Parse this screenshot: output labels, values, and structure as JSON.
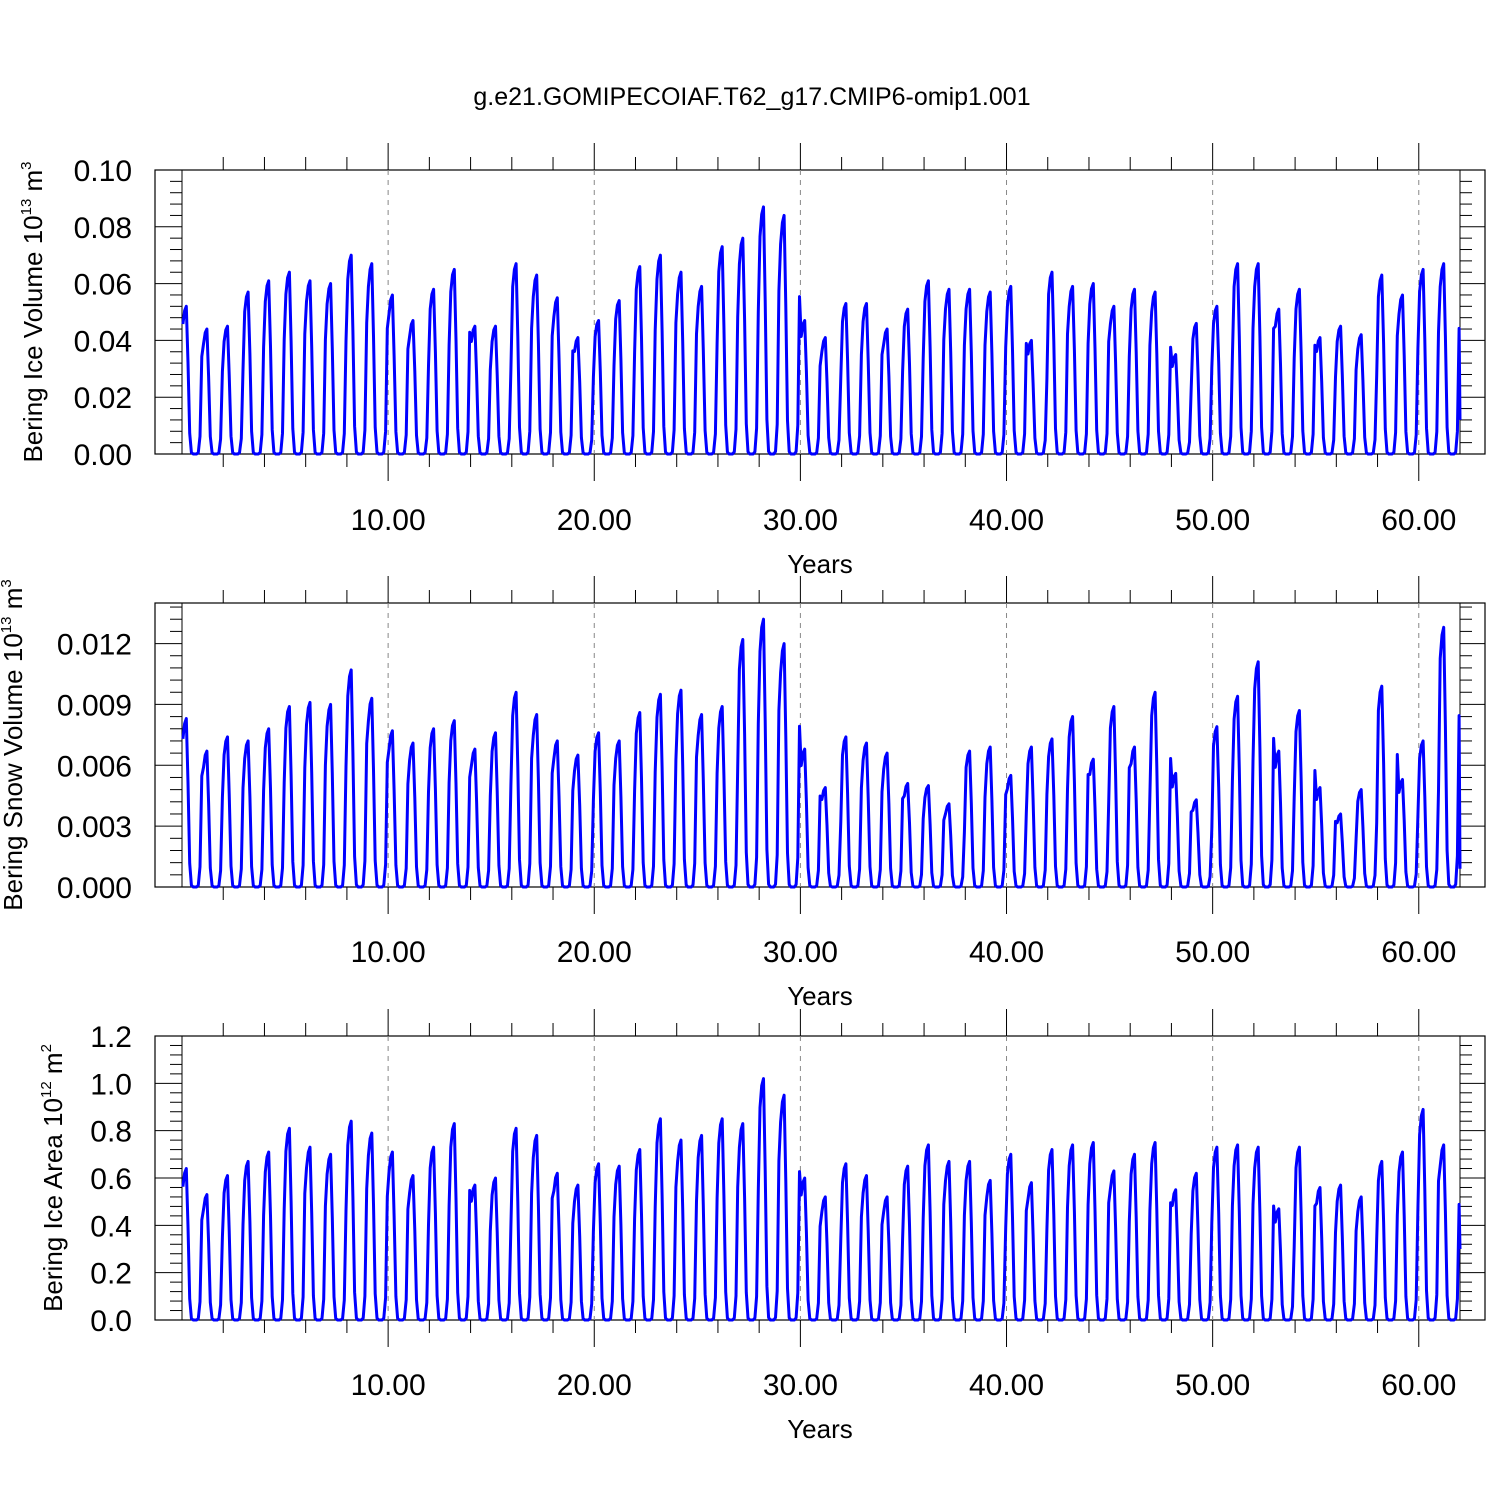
{
  "title": "g.e21.GOMIPECOIAF.T62_g17.CMIP6-omip1.001",
  "colors": {
    "series": "#0000ff",
    "axis": "#000000",
    "grid": "#888888"
  },
  "chart_data": [
    {
      "type": "line",
      "xlabel": "Years",
      "ylabel": {
        "main": "Bering Ice Volume 10",
        "exp": "13",
        "unit": " m",
        "unit_exp": "3"
      },
      "xlim": [
        0,
        62
      ],
      "ylim": [
        0,
        0.1
      ],
      "xticks": [
        10,
        20,
        30,
        40,
        50,
        60
      ],
      "xtick_labels": [
        "10.00",
        "20.00",
        "30.00",
        "40.00",
        "50.00",
        "60.00"
      ],
      "yticks": [
        0,
        0.02,
        0.04,
        0.06,
        0.08,
        0.1
      ],
      "ytick_labels": [
        "0.00",
        "0.02",
        "0.04",
        "0.06",
        "0.08",
        "0.10"
      ],
      "grid": "vertical dashed at major x ticks",
      "series": [
        {
          "peaks": [
            0.052,
            0.044,
            0.045,
            0.057,
            0.061,
            0.064,
            0.061,
            0.06,
            0.07,
            0.067,
            0.056,
            0.047,
            0.058,
            0.065,
            0.045,
            0.045,
            0.067,
            0.063,
            0.055,
            0.041,
            0.047,
            0.054,
            0.066,
            0.07,
            0.064,
            0.059,
            0.073,
            0.076,
            0.087,
            0.084,
            0.047,
            0.041,
            0.053,
            0.053,
            0.044,
            0.051,
            0.061,
            0.058,
            0.058,
            0.057,
            0.059,
            0.04,
            0.064,
            0.059,
            0.06,
            0.052,
            0.058,
            0.057,
            0.035,
            0.046,
            0.052,
            0.067,
            0.067,
            0.051,
            0.058,
            0.041,
            0.045,
            0.042,
            0.063,
            0.056,
            0.065,
            0.067
          ],
          "end_value": 0.012
        }
      ]
    },
    {
      "type": "line",
      "xlabel": "Years",
      "ylabel": {
        "main": "Bering Snow Volume 10",
        "exp": "13",
        "unit": " m",
        "unit_exp": "3"
      },
      "xlim": [
        0,
        62
      ],
      "ylim": [
        0,
        0.014
      ],
      "xticks": [
        10,
        20,
        30,
        40,
        50,
        60
      ],
      "xtick_labels": [
        "10.00",
        "20.00",
        "30.00",
        "40.00",
        "50.00",
        "60.00"
      ],
      "yticks": [
        0,
        0.003,
        0.006,
        0.009,
        0.012
      ],
      "ytick_labels": [
        "0.000",
        "0.003",
        "0.006",
        "0.009",
        "0.012"
      ],
      "grid": "vertical dashed at major x ticks",
      "series": [
        {
          "peaks": [
            0.0083,
            0.0067,
            0.0074,
            0.0072,
            0.0078,
            0.0089,
            0.0091,
            0.009,
            0.0107,
            0.0093,
            0.0077,
            0.0071,
            0.0078,
            0.0082,
            0.0068,
            0.0076,
            0.0096,
            0.0085,
            0.0072,
            0.0065,
            0.0076,
            0.0072,
            0.0086,
            0.0095,
            0.0097,
            0.0085,
            0.0089,
            0.0122,
            0.0132,
            0.012,
            0.0068,
            0.0049,
            0.0074,
            0.0071,
            0.0066,
            0.0051,
            0.005,
            0.0041,
            0.0067,
            0.0069,
            0.0055,
            0.0069,
            0.0073,
            0.0084,
            0.0063,
            0.0089,
            0.0069,
            0.0096,
            0.0056,
            0.0043,
            0.0079,
            0.0094,
            0.0111,
            0.0067,
            0.0087,
            0.0049,
            0.0036,
            0.0048,
            0.0099,
            0.0053,
            0.0072,
            0.0128
          ],
          "end_value": 0.0009
        }
      ]
    },
    {
      "type": "line",
      "xlabel": "Years",
      "ylabel": {
        "main": "Bering Ice Area 10",
        "exp": "12",
        "unit": " m",
        "unit_exp": "2"
      },
      "xlim": [
        0,
        62
      ],
      "ylim": [
        0,
        1.2
      ],
      "xticks": [
        10,
        20,
        30,
        40,
        50,
        60
      ],
      "xtick_labels": [
        "10.00",
        "20.00",
        "30.00",
        "40.00",
        "50.00",
        "60.00"
      ],
      "yticks": [
        0,
        0.2,
        0.4,
        0.6,
        0.8,
        1.0,
        1.2
      ],
      "ytick_labels": [
        "0.0",
        "0.2",
        "0.4",
        "0.6",
        "0.8",
        "1.0",
        "1.2"
      ],
      "grid": "vertical dashed at major x ticks",
      "series": [
        {
          "peaks": [
            0.64,
            0.53,
            0.61,
            0.67,
            0.71,
            0.81,
            0.73,
            0.7,
            0.84,
            0.79,
            0.71,
            0.61,
            0.73,
            0.83,
            0.57,
            0.6,
            0.81,
            0.78,
            0.62,
            0.57,
            0.66,
            0.65,
            0.72,
            0.85,
            0.76,
            0.78,
            0.85,
            0.83,
            1.02,
            0.95,
            0.6,
            0.52,
            0.66,
            0.61,
            0.52,
            0.65,
            0.74,
            0.67,
            0.67,
            0.59,
            0.7,
            0.58,
            0.72,
            0.74,
            0.75,
            0.63,
            0.7,
            0.75,
            0.55,
            0.62,
            0.73,
            0.74,
            0.73,
            0.47,
            0.73,
            0.56,
            0.57,
            0.52,
            0.67,
            0.71,
            0.89,
            0.74
          ],
          "end_value": 0.3
        }
      ]
    }
  ]
}
